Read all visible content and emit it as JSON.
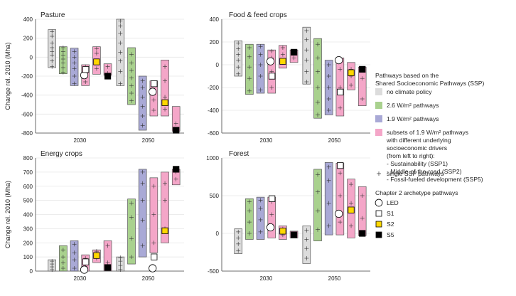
{
  "legend": {
    "heading_lines": [
      "Pathways based on the",
      "Shared Socioeconomic Pathways (SSP)"
    ],
    "categories": [
      {
        "key": "nocp",
        "color": "#dcdcdc",
        "lines": [
          "no climate policy"
        ]
      },
      {
        "key": "p26",
        "color": "#a9d18e",
        "lines": [
          "2.6 W/m² pathways"
        ]
      },
      {
        "key": "p19",
        "color": "#a9a9d6",
        "lines": [
          "1.9 W/m² pathways"
        ]
      },
      {
        "key": "sub",
        "color": "#f4a6c8",
        "lines": [
          "subsets of 1.9 W/m² pathways",
          "with different underlying",
          "socioeconomic drivers",
          "(from left to right):",
          "- Sustainability (SSP1)",
          "- Middle-of-the-road (SSP2)",
          "- Fossil-fueled development (SSP5)"
        ]
      }
    ],
    "single_label": "single SSP pathways",
    "archetype_heading": "Chapter 2 archetype pathways",
    "archetypes": [
      {
        "key": "LED",
        "label": "LED",
        "symbol": "circle",
        "fill": "#ffffff"
      },
      {
        "key": "S1",
        "label": "S1",
        "symbol": "square",
        "fill": "#ffffff"
      },
      {
        "key": "S2",
        "label": "S2",
        "symbol": "square",
        "fill": "#ffd700"
      },
      {
        "key": "S5",
        "label": "S5",
        "symbol": "square",
        "fill": "#000000"
      }
    ]
  },
  "chart_data": [
    {
      "type": "box",
      "title": "Pasture",
      "ylabel": "Change rel. 2010 (Mha)",
      "ylim": [
        -800,
        400
      ],
      "yticks": [
        -800,
        -600,
        -400,
        -200,
        0,
        200,
        400
      ],
      "x_labels": [
        "2030",
        "2050"
      ],
      "groups": [
        {
          "year": "2030",
          "boxes": [
            {
              "cat": "nocp",
              "min": -110,
              "max": 290,
              "points": [
                -100,
                -40,
                20,
                60,
                100,
                150,
                220,
                270
              ]
            },
            {
              "cat": "p26",
              "min": -175,
              "max": 110,
              "points": [
                -160,
                -110,
                -60,
                -20,
                20,
                60,
                100
              ]
            },
            {
              "cat": "p19",
              "min": -300,
              "max": 95,
              "points": [
                -280,
                -200,
                -120,
                -60,
                0,
                60
              ]
            },
            {
              "cat": "sub",
              "min": -300,
              "max": -80,
              "points": [
                -260,
                -160,
                -100
              ]
            },
            {
              "cat": "sub",
              "min": -180,
              "max": 110,
              "points": [
                -120,
                -40,
                40,
                90
              ]
            },
            {
              "cat": "sub",
              "min": -190,
              "max": -70,
              "points": [
                -170,
                -100
              ]
            }
          ]
        },
        {
          "year": "2050",
          "boxes": [
            {
              "cat": "nocp",
              "min": -300,
              "max": 400,
              "points": [
                -280,
                -150,
                -40,
                50,
                150,
                250,
                330,
                380
              ]
            },
            {
              "cat": "p26",
              "min": -500,
              "max": 100,
              "points": [
                -460,
                -380,
                -300,
                -220,
                -140,
                -60,
                30
              ]
            },
            {
              "cat": "p19",
              "min": -770,
              "max": -200,
              "points": [
                -720,
                -620,
                -520,
                -420,
                -320,
                -250
              ]
            },
            {
              "cat": "sub",
              "min": -620,
              "max": -250,
              "points": [
                -560,
                -450,
                -360,
                -290
              ]
            },
            {
              "cat": "sub",
              "min": -620,
              "max": -30,
              "points": [
                -550,
                -420,
                -250,
                -100
              ]
            },
            {
              "cat": "sub",
              "min": -780,
              "max": -520,
              "points": [
                -700
              ]
            }
          ]
        }
      ],
      "archetypes": {
        "2030": {
          "LED": -190,
          "S1": -130,
          "S2": -50,
          "S5": -200
        },
        "2050": {
          "LED": -365,
          "S1": -280,
          "S2": -480,
          "S5": -770
        }
      }
    },
    {
      "type": "box",
      "title": "Food & feed crops",
      "ylabel": "",
      "ylim": [
        -600,
        400
      ],
      "yticks": [
        -600,
        -400,
        -200,
        0,
        200,
        400
      ],
      "x_labels": [
        "2030",
        "2050"
      ],
      "groups": [
        {
          "year": "2030",
          "boxes": [
            {
              "cat": "nocp",
              "min": -100,
              "max": 210,
              "points": [
                -80,
                -20,
                40,
                90,
                140,
                190
              ]
            },
            {
              "cat": "p26",
              "min": -260,
              "max": 180,
              "points": [
                -230,
                -120,
                -20,
                70,
                150
              ]
            },
            {
              "cat": "p19",
              "min": -250,
              "max": 180,
              "points": [
                -220,
                -100,
                0,
                90,
                160
              ]
            },
            {
              "cat": "sub",
              "min": -250,
              "max": 130,
              "points": [
                -200,
                -60,
                60,
                120
              ]
            },
            {
              "cat": "sub",
              "min": -30,
              "max": 170,
              "points": [
                20,
                90,
                150
              ]
            },
            {
              "cat": "sub",
              "min": 20,
              "max": 130,
              "points": [
                60,
                110
              ]
            }
          ]
        },
        {
          "year": "2050",
          "boxes": [
            {
              "cat": "nocp",
              "min": -170,
              "max": 330,
              "points": [
                -150,
                -60,
                40,
                130,
                220,
                300
              ]
            },
            {
              "cat": "p26",
              "min": -470,
              "max": 230,
              "points": [
                -440,
                -330,
                -200,
                -60,
                60,
                180
              ]
            },
            {
              "cat": "p19",
              "min": -440,
              "max": 40,
              "points": [
                -400,
                -300,
                -200,
                -100,
                0
              ]
            },
            {
              "cat": "sub",
              "min": -450,
              "max": 60,
              "points": [
                -380,
                -200,
                -40
              ]
            },
            {
              "cat": "sub",
              "min": -220,
              "max": 20,
              "points": [
                -180,
                -100,
                -40
              ]
            },
            {
              "cat": "sub",
              "min": -360,
              "max": -20,
              "points": [
                -300,
                -120
              ]
            }
          ]
        }
      ],
      "archetypes": {
        "2030": {
          "LED": 30,
          "S1": -100,
          "S2": 30,
          "S5": 110
        },
        "2050": {
          "LED": 40,
          "S1": -240,
          "S2": -70,
          "S5": -40
        }
      }
    },
    {
      "type": "box",
      "title": "Energy crops",
      "ylabel": "Change rel. 2010 (Mha)",
      "ylim": [
        0,
        800
      ],
      "yticks": [
        0,
        100,
        200,
        300,
        400,
        500,
        600,
        700,
        800
      ],
      "x_labels": [
        "2030",
        "2050"
      ],
      "groups": [
        {
          "year": "2030",
          "boxes": [
            {
              "cat": "nocp",
              "min": 0,
              "max": 80,
              "points": [
                10,
                30,
                50,
                70
              ]
            },
            {
              "cat": "p26",
              "min": 0,
              "max": 180,
              "points": [
                20,
                60,
                100,
                150
              ]
            },
            {
              "cat": "p19",
              "min": 0,
              "max": 215,
              "points": [
                20,
                80,
                130,
                190
              ]
            },
            {
              "cat": "sub",
              "min": 0,
              "max": 115,
              "points": [
                30,
                90
              ]
            },
            {
              "cat": "sub",
              "min": 60,
              "max": 150,
              "points": [
                90,
                140
              ]
            },
            {
              "cat": "sub",
              "min": 0,
              "max": 215,
              "points": [
                60,
                180
              ]
            }
          ]
        },
        {
          "year": "2050",
          "boxes": [
            {
              "cat": "nocp",
              "min": 0,
              "max": 100,
              "points": [
                10,
                40,
                70,
                95
              ]
            },
            {
              "cat": "p26",
              "min": 50,
              "max": 510,
              "points": [
                100,
                230,
                380,
                480
              ]
            },
            {
              "cat": "p19",
              "min": 100,
              "max": 720,
              "points": [
                180,
                360,
                500,
                620,
                700
              ]
            },
            {
              "cat": "sub",
              "min": 130,
              "max": 660,
              "points": [
                200,
                400,
                600
              ]
            },
            {
              "cat": "sub",
              "min": 200,
              "max": 700,
              "points": [
                300,
                500,
                620
              ]
            },
            {
              "cat": "sub",
              "min": 610,
              "max": 720,
              "points": [
                650,
                700
              ]
            }
          ]
        }
      ],
      "archetypes": {
        "2030": {
          "LED": 10,
          "S1": 65,
          "S2": 110,
          "S5": 25
        },
        "2050": {
          "LED": 20,
          "S1": 100,
          "S2": 285,
          "S5": 720
        }
      }
    },
    {
      "type": "box",
      "title": "Forest",
      "ylabel": "",
      "ylim": [
        -500,
        1000
      ],
      "yticks": [
        -500,
        0,
        500,
        1000
      ],
      "x_labels": [
        "2030",
        "2050"
      ],
      "groups": [
        {
          "year": "2030",
          "boxes": [
            {
              "cat": "nocp",
              "min": -270,
              "max": 60,
              "points": [
                -230,
                -140,
                -60,
                20
              ]
            },
            {
              "cat": "p26",
              "min": -80,
              "max": 460,
              "points": [
                0,
                150,
                300,
                420
              ]
            },
            {
              "cat": "p19",
              "min": -80,
              "max": 480,
              "points": [
                20,
                180,
                330,
                440
              ]
            },
            {
              "cat": "sub",
              "min": -60,
              "max": 480,
              "points": [
                60,
                250,
                420
              ]
            },
            {
              "cat": "sub",
              "min": -80,
              "max": 100,
              "points": [
                -20,
                60
              ]
            },
            {
              "cat": "sub",
              "min": -60,
              "max": 30,
              "points": [
                -30
              ]
            }
          ]
        },
        {
          "year": "2050",
          "boxes": [
            {
              "cat": "nocp",
              "min": -400,
              "max": 100,
              "points": [
                -330,
                -200,
                -80,
                40
              ]
            },
            {
              "cat": "p26",
              "min": -100,
              "max": 850,
              "points": [
                50,
                300,
                550,
                780
              ]
            },
            {
              "cat": "p19",
              "min": -20,
              "max": 940,
              "points": [
                100,
                400,
                700,
                880
              ]
            },
            {
              "cat": "sub",
              "min": -20,
              "max": 930,
              "points": [
                150,
                500,
                800
              ]
            },
            {
              "cat": "sub",
              "min": -60,
              "max": 720,
              "points": [
                100,
                400,
                650
              ]
            },
            {
              "cat": "sub",
              "min": -30,
              "max": 620,
              "points": [
                200,
                500
              ]
            }
          ]
        }
      ],
      "archetypes": {
        "2030": {
          "LED": 80,
          "S1": 460,
          "S2": 30,
          "S5": -20
        },
        "2050": {
          "LED": 260,
          "S1": 900,
          "S2": 310,
          "S5": 0
        }
      }
    }
  ]
}
